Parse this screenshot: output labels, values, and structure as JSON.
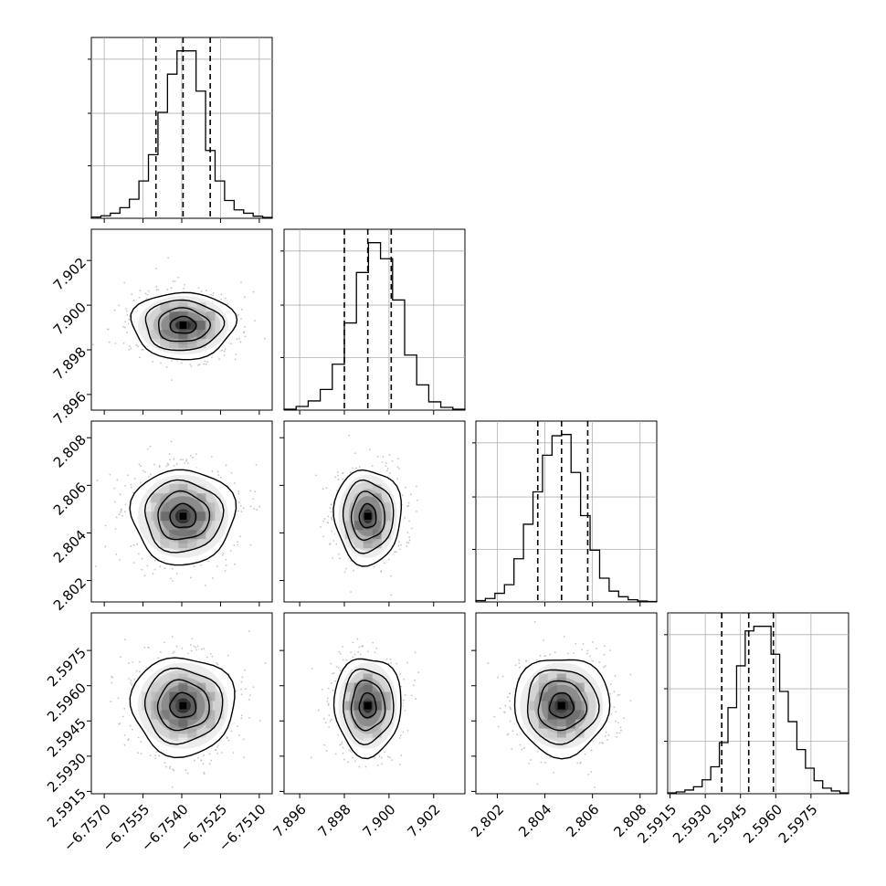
{
  "chart_data": [
    {
      "type": "histogram",
      "panel": [
        0,
        0
      ],
      "param_index": 0,
      "xlim": [
        -6.7575,
        -6.7505
      ],
      "xticks": [
        -6.757,
        -6.7555,
        -6.754,
        -6.7525,
        -6.751
      ],
      "quantiles": [
        -6.755,
        -6.75395,
        -6.7529
      ],
      "hist_counts": [
        3,
        6,
        12,
        25,
        45,
        88,
        150,
        250,
        340,
        395,
        395,
        300,
        160,
        88,
        42,
        20,
        12,
        5,
        2
      ]
    },
    {
      "type": "scatter_density",
      "panel": [
        1,
        0
      ],
      "x_param": 0,
      "y_param": 1,
      "xlim": [
        -6.7575,
        -6.7505
      ],
      "ylim": [
        7.8953,
        7.9034
      ],
      "yticks": [
        7.896,
        7.898,
        7.9,
        7.902
      ],
      "ytick_labels": [
        "7.896",
        "7.898",
        "7.900",
        "7.902"
      ],
      "mean": [
        -6.75395,
        7.8991
      ],
      "std": [
        0.001,
        0.00075
      ]
    },
    {
      "type": "histogram",
      "panel": [
        1,
        1
      ],
      "param_index": 1,
      "xlim": [
        7.8953,
        7.9034
      ],
      "xticks": [
        7.896,
        7.898,
        7.9,
        7.902
      ],
      "quantiles": [
        7.898,
        7.89905,
        7.9001
      ],
      "hist_counts": [
        2,
        8,
        20,
        45,
        100,
        190,
        300,
        365,
        330,
        240,
        120,
        55,
        18,
        6,
        2
      ]
    },
    {
      "type": "scatter_density",
      "panel": [
        2,
        0
      ],
      "x_param": 0,
      "y_param": 2,
      "xlim": [
        -6.7575,
        -6.7505
      ],
      "ylim": [
        2.8011,
        2.8087
      ],
      "yticks": [
        2.802,
        2.804,
        2.806,
        2.808
      ],
      "ytick_labels": [
        "2.802",
        "2.804",
        "2.806",
        "2.808"
      ],
      "mean": [
        -6.75395,
        2.8047
      ],
      "std": [
        0.001,
        0.001
      ]
    },
    {
      "type": "scatter_density",
      "panel": [
        2,
        1
      ],
      "x_param": 1,
      "y_param": 2,
      "xlim": [
        7.8953,
        7.9034
      ],
      "ylim": [
        2.8011,
        2.8087
      ],
      "mean": [
        7.89905,
        2.8047
      ],
      "std": [
        0.00075,
        0.001
      ]
    },
    {
      "type": "histogram",
      "panel": [
        2,
        2
      ],
      "param_index": 2,
      "xlim": [
        2.8011,
        2.8087
      ],
      "xticks": [
        2.802,
        2.804,
        2.806,
        2.808
      ],
      "quantiles": [
        2.8037,
        2.8047,
        2.8058
      ],
      "hist_counts": [
        3,
        8,
        20,
        40,
        100,
        180,
        255,
        340,
        385,
        388,
        300,
        200,
        120,
        55,
        25,
        12,
        5,
        2,
        1
      ]
    },
    {
      "type": "scatter_density",
      "panel": [
        3,
        0
      ],
      "x_param": 0,
      "y_param": 3,
      "xlim": [
        -6.7575,
        -6.7505
      ],
      "ylim": [
        2.5914,
        2.5991
      ],
      "yticks": [
        2.5915,
        2.593,
        2.5945,
        2.596,
        2.5975
      ],
      "ytick_labels": [
        "2.5915",
        "2.5930",
        "2.5945",
        "2.5960",
        "2.5975"
      ],
      "mean": [
        -6.75395,
        2.59515
      ],
      "std": [
        0.001,
        0.00105
      ]
    },
    {
      "type": "scatter_density",
      "panel": [
        3,
        1
      ],
      "x_param": 1,
      "y_param": 3,
      "xlim": [
        7.8953,
        7.9034
      ],
      "ylim": [
        2.5914,
        2.5991
      ],
      "mean": [
        7.89905,
        2.59515
      ],
      "std": [
        0.00075,
        0.00105
      ]
    },
    {
      "type": "scatter_density",
      "panel": [
        3,
        2
      ],
      "x_param": 2,
      "y_param": 3,
      "xlim": [
        2.8011,
        2.8087
      ],
      "ylim": [
        2.5914,
        2.5991
      ],
      "mean": [
        2.8047,
        2.59515
      ],
      "std": [
        0.001,
        0.00105
      ]
    },
    {
      "type": "histogram",
      "panel": [
        3,
        3
      ],
      "param_index": 3,
      "xlim": [
        2.5914,
        2.5991
      ],
      "xticks": [
        2.5915,
        2.593,
        2.5945,
        2.596,
        2.5975
      ],
      "quantiles": [
        2.5937,
        2.59485,
        2.5959
      ],
      "hist_counts": [
        2,
        4,
        8,
        15,
        30,
        58,
        110,
        185,
        275,
        350,
        360,
        360,
        300,
        220,
        155,
        95,
        55,
        28,
        12,
        6,
        2
      ]
    }
  ],
  "axis_tick_labels": {
    "x0": [
      "−6.7570",
      "−6.7555",
      "−6.7540",
      "−6.7525",
      "−6.7510"
    ],
    "x1": [
      "7.896",
      "7.898",
      "7.900",
      "7.902"
    ],
    "x2": [
      "2.802",
      "2.804",
      "2.806",
      "2.808"
    ],
    "x3": [
      "2.5915",
      "2.5930",
      "2.5945",
      "2.5960",
      "2.5975"
    ]
  },
  "style": {
    "line_color": "#000000",
    "scatter_color": "#b0b0b0",
    "grid_color": "#b0b0b0",
    "density_colormap": [
      "#ffffff",
      "#000000"
    ]
  }
}
